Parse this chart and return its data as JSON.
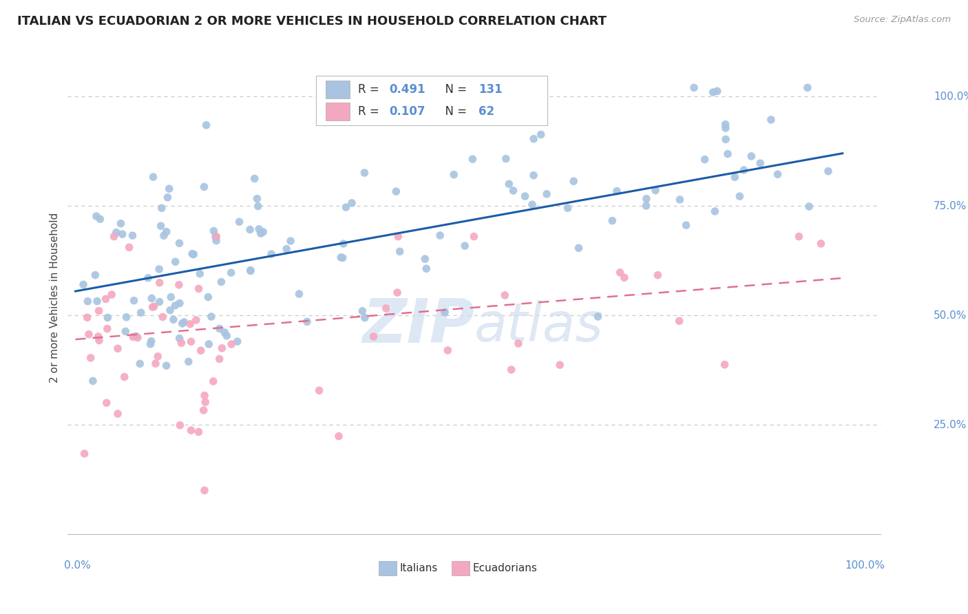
{
  "title": "ITALIAN VS ECUADORIAN 2 OR MORE VEHICLES IN HOUSEHOLD CORRELATION CHART",
  "source": "Source: ZipAtlas.com",
  "ylabel": "2 or more Vehicles in Household",
  "ylim": [
    0.0,
    1.08
  ],
  "xlim": [
    -0.01,
    1.05
  ],
  "italian_R": 0.491,
  "italian_N": 131,
  "ecuadorian_R": 0.107,
  "ecuadorian_N": 62,
  "italian_color": "#a8c4e0",
  "ecuadorian_color": "#f4a8c0",
  "italian_line_color": "#1a5ca8",
  "ecuadorian_line_color": "#e07090",
  "title_color": "#222222",
  "tick_color": "#5a8fd0",
  "grid_color": "#c8c8c8",
  "legend_text_color": "#333333",
  "source_color": "#999999",
  "watermark_color": "#d0dff0",
  "it_line_start_x": 0.0,
  "it_line_start_y": 0.555,
  "it_line_end_x": 1.0,
  "it_line_end_y": 0.87,
  "ec_line_start_x": 0.0,
  "ec_line_start_y": 0.445,
  "ec_line_end_x": 1.0,
  "ec_line_end_y": 0.585
}
